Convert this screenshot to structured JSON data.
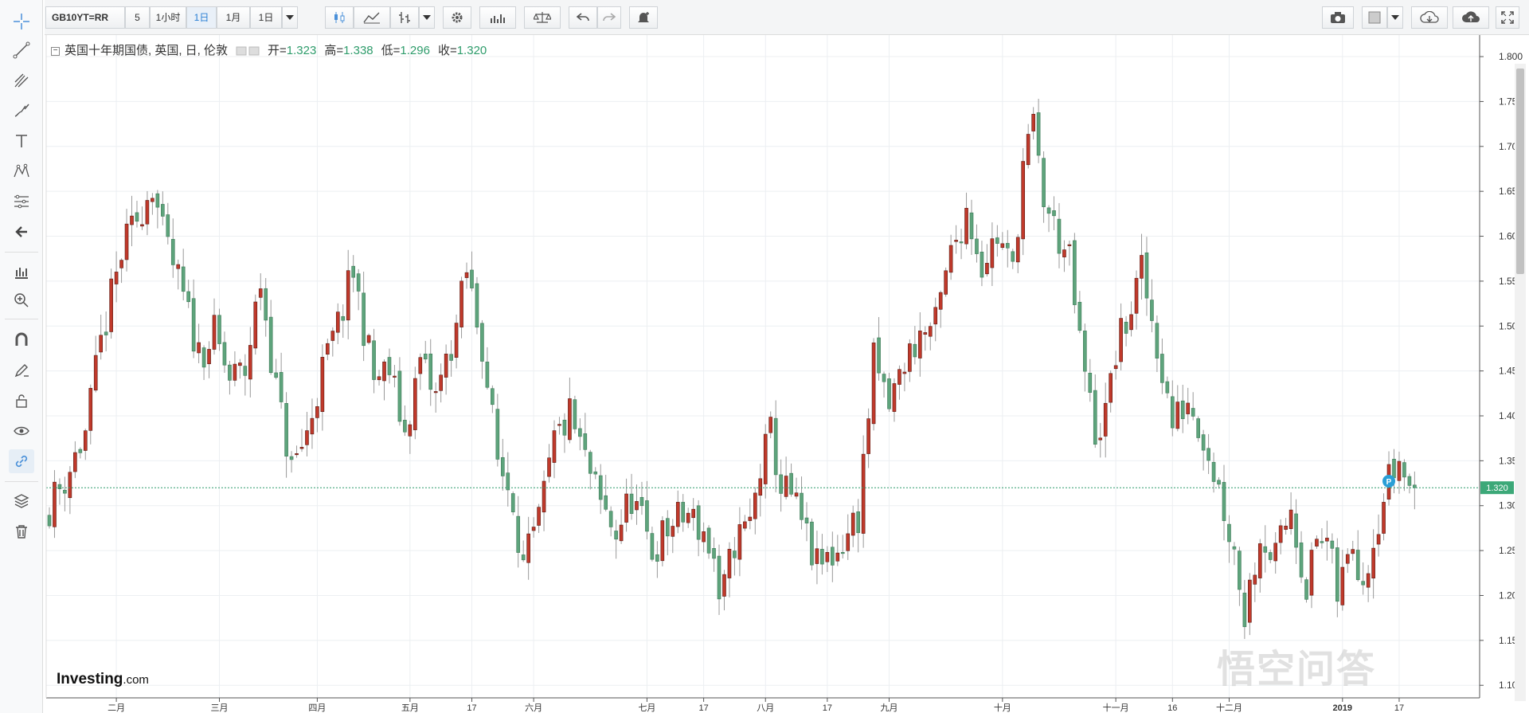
{
  "toolbar": {
    "symbol": "GB10YT=RR",
    "interval_5": "5",
    "interval_1h": "1小时",
    "interval_1d": "1日",
    "interval_1m": "1月",
    "period": "1日"
  },
  "legend": {
    "title": "英国十年期国债, 英国, 日, 伦敦",
    "open_label": "开=",
    "open": "1.323",
    "high_label": "高=",
    "high": "1.338",
    "low_label": "低=",
    "low": "1.296",
    "close_label": "收=",
    "close": "1.320"
  },
  "brand": {
    "name": "Investing",
    "suffix": ".com"
  },
  "watermark": "悟空问答",
  "colors": {
    "up": "#c0392b",
    "down": "#5ea47c",
    "current_line": "#2e9c6b",
    "price_tag": "#3ca878"
  },
  "chart_data": {
    "type": "candlestick",
    "y_ticks": [
      "1.800",
      "1.750",
      "1.700",
      "1.650",
      "1.600",
      "1.550",
      "1.500",
      "1.450",
      "1.400",
      "1.350",
      "1.300",
      "1.250",
      "1.200",
      "1.150",
      "1.100"
    ],
    "ylim": [
      1.086,
      1.824
    ],
    "x_range": [
      0,
      277
    ],
    "x_ticks": [
      {
        "label": "二月",
        "x": 13
      },
      {
        "label": "三月",
        "x": 33
      },
      {
        "label": "四月",
        "x": 52
      },
      {
        "label": "五月",
        "x": 70
      },
      {
        "label": "17",
        "x": 82
      },
      {
        "label": "六月",
        "x": 94
      },
      {
        "label": "七月",
        "x": 116
      },
      {
        "label": "17",
        "x": 127
      },
      {
        "label": "八月",
        "x": 139
      },
      {
        "label": "17",
        "x": 151
      },
      {
        "label": "九月",
        "x": 163
      },
      {
        "label": "十月",
        "x": 185
      },
      {
        "label": "十一月",
        "x": 207
      },
      {
        "label": "16",
        "x": 218
      },
      {
        "label": "十二月",
        "x": 229
      },
      {
        "label": "2019",
        "x": 251
      },
      {
        "label": "17",
        "x": 262
      }
    ],
    "current_value": 1.32,
    "current_value_label": "1.320",
    "marker_label": "P",
    "marker_x": 260,
    "marker_value": 1.322,
    "start_close": 1.29,
    "seed": 11,
    "anchors": [
      [
        0,
        1.29
      ],
      [
        4,
        1.33
      ],
      [
        8,
        1.38
      ],
      [
        11,
        1.48
      ],
      [
        15,
        1.58
      ],
      [
        18,
        1.62
      ],
      [
        21,
        1.66
      ],
      [
        23,
        1.6
      ],
      [
        26,
        1.55
      ],
      [
        30,
        1.47
      ],
      [
        33,
        1.49
      ],
      [
        36,
        1.44
      ],
      [
        39,
        1.45
      ],
      [
        42,
        1.55
      ],
      [
        45,
        1.43
      ],
      [
        48,
        1.34
      ],
      [
        51,
        1.38
      ],
      [
        54,
        1.45
      ],
      [
        57,
        1.5
      ],
      [
        60,
        1.56
      ],
      [
        64,
        1.44
      ],
      [
        67,
        1.45
      ],
      [
        70,
        1.38
      ],
      [
        73,
        1.46
      ],
      [
        76,
        1.42
      ],
      [
        80,
        1.5
      ],
      [
        82,
        1.56
      ],
      [
        85,
        1.48
      ],
      [
        88,
        1.35
      ],
      [
        91,
        1.31
      ],
      [
        93,
        1.23
      ],
      [
        96,
        1.28
      ],
      [
        99,
        1.37
      ],
      [
        102,
        1.4
      ],
      [
        105,
        1.35
      ],
      [
        108,
        1.3
      ],
      [
        111,
        1.27
      ],
      [
        114,
        1.31
      ],
      [
        118,
        1.25
      ],
      [
        122,
        1.28
      ],
      [
        125,
        1.29
      ],
      [
        128,
        1.27
      ],
      [
        130,
        1.24
      ],
      [
        131,
        1.18
      ],
      [
        134,
        1.26
      ],
      [
        137,
        1.28
      ],
      [
        139,
        1.34
      ],
      [
        141,
        1.38
      ],
      [
        143,
        1.32
      ],
      [
        145,
        1.31
      ],
      [
        147,
        1.28
      ],
      [
        150,
        1.23
      ],
      [
        154,
        1.25
      ],
      [
        157,
        1.28
      ],
      [
        158,
        1.29
      ],
      [
        161,
        1.46
      ],
      [
        164,
        1.41
      ],
      [
        167,
        1.46
      ],
      [
        170,
        1.49
      ],
      [
        173,
        1.5
      ],
      [
        176,
        1.58
      ],
      [
        179,
        1.63
      ],
      [
        182,
        1.57
      ],
      [
        185,
        1.6
      ],
      [
        188,
        1.56
      ],
      [
        190,
        1.68
      ],
      [
        192,
        1.72
      ],
      [
        194,
        1.64
      ],
      [
        196,
        1.61
      ],
      [
        199,
        1.57
      ],
      [
        201,
        1.48
      ],
      [
        204,
        1.38
      ],
      [
        206,
        1.4
      ],
      [
        208,
        1.47
      ],
      [
        211,
        1.52
      ],
      [
        213,
        1.56
      ],
      [
        216,
        1.48
      ],
      [
        219,
        1.39
      ],
      [
        222,
        1.42
      ],
      [
        225,
        1.38
      ],
      [
        228,
        1.32
      ],
      [
        231,
        1.25
      ],
      [
        233,
        1.18
      ],
      [
        236,
        1.27
      ],
      [
        239,
        1.24
      ],
      [
        242,
        1.3
      ],
      [
        245,
        1.21
      ],
      [
        247,
        1.26
      ],
      [
        249,
        1.26
      ],
      [
        251,
        1.2
      ],
      [
        254,
        1.26
      ],
      [
        256,
        1.22
      ],
      [
        259,
        1.29
      ],
      [
        261,
        1.33
      ],
      [
        263,
        1.35
      ],
      [
        265,
        1.32
      ]
    ]
  }
}
